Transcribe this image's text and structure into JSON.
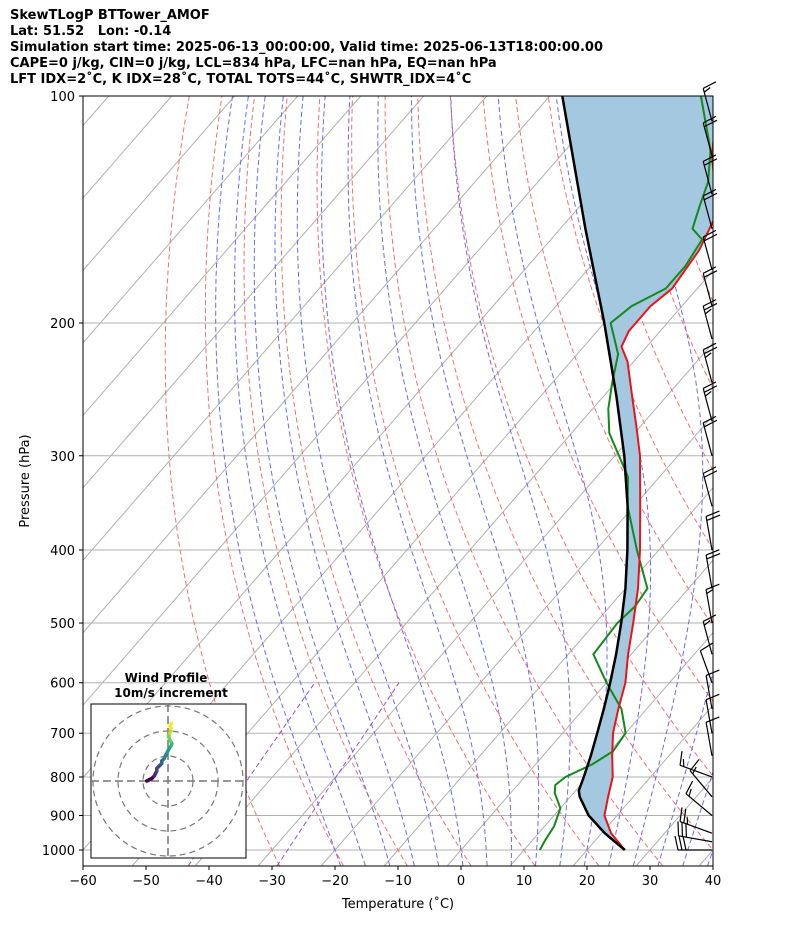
{
  "header": {
    "lines": [
      "SkewTLogP BTTower_AMOF",
      "Lat: 51.52   Lon: -0.14",
      "Simulation start time: 2025-06-13_00:00:00, Valid time: 2025-06-13T18:00:00.00",
      "CAPE=0 j/kg, CIN=0 j/kg, LCL=834 hPa, LFC=nan hPa, EQ=nan hPa",
      "LFT IDX=2˚C, K IDX=28˚C, TOTAL TOTS=44˚C, SHWTR_IDX=4˚C"
    ]
  },
  "colors": {
    "temperature": "#e8141a",
    "dewpoint": "#118a1a",
    "parcel": "#000000",
    "cin_cape_fill": "#a4c8e0",
    "dry_adiabat": "#f07070",
    "moist_adiabat": "#6a6af0",
    "mixing_ratio": "#9b4fc6",
    "isotherm": "#b0b0b0",
    "isobar": "#b0b0b0",
    "wind_profile": "viridis"
  },
  "chart_data": [
    {
      "type": "line",
      "subtype": "skew-t log-p",
      "xlabel": "Temperature (˚C)",
      "ylabel": "Pressure (hPa)",
      "xlim": [
        -60,
        40
      ],
      "ylim": [
        1050,
        100
      ],
      "y_scale": "log",
      "x_ticks": [
        "−60",
        "−50",
        "−40",
        "−30",
        "−20",
        "−10",
        "0",
        "10",
        "20",
        "30",
        "40"
      ],
      "y_ticks": [
        "100",
        "200",
        "300",
        "400",
        "500",
        "600",
        "700",
        "800",
        "900",
        "1000"
      ],
      "grid": true,
      "series": [
        {
          "role": "temperature",
          "points": [
            [
              1000,
              26
            ],
            [
              950,
              21.5
            ],
            [
              900,
              18
            ],
            [
              850,
              16
            ],
            [
              800,
              14
            ],
            [
              750,
              11
            ],
            [
              700,
              8
            ],
            [
              650,
              5.5
            ],
            [
              600,
              3
            ],
            [
              550,
              -0.5
            ],
            [
              500,
              -4
            ],
            [
              450,
              -8
            ],
            [
              400,
              -13
            ],
            [
              350,
              -19
            ],
            [
              300,
              -26
            ],
            [
              275,
              -30.5
            ],
            [
              250,
              -35.5
            ],
            [
              225,
              -41
            ],
            [
              215,
              -44
            ],
            [
              205,
              -45
            ],
            [
              200,
              -45
            ],
            [
              190,
              -45
            ],
            [
              180,
              -44
            ],
            [
              160,
              -45
            ],
            [
              145,
              -47
            ],
            [
              140,
              -48.5
            ],
            [
              130,
              -52
            ],
            [
              120,
              -56
            ],
            [
              110,
              -59.5
            ],
            [
              100,
              -64
            ]
          ]
        },
        {
          "role": "dewpoint",
          "points": [
            [
              1000,
              12.5
            ],
            [
              970,
              12
            ],
            [
              930,
              11.5
            ],
            [
              880,
              10
            ],
            [
              840,
              7
            ],
            [
              820,
              6
            ],
            [
              800,
              6.5
            ],
            [
              770,
              9
            ],
            [
              740,
              10.5
            ],
            [
              700,
              10
            ],
            [
              650,
              6
            ],
            [
              600,
              0
            ],
            [
              550,
              -6
            ],
            [
              500,
              -6.5
            ],
            [
              475,
              -6
            ],
            [
              450,
              -6.5
            ],
            [
              400,
              -13.5
            ],
            [
              350,
              -21
            ],
            [
              320,
              -25
            ],
            [
              280,
              -34
            ],
            [
              260,
              -37.5
            ],
            [
              240,
              -40.5
            ],
            [
              220,
              -43.5
            ],
            [
              200,
              -49
            ],
            [
              190,
              -48
            ],
            [
              180,
              -45
            ],
            [
              168,
              -45
            ],
            [
              155,
              -46
            ],
            [
              150,
              -49
            ],
            [
              140,
              -51
            ],
            [
              130,
              -53
            ],
            [
              118,
              -57
            ],
            [
              100,
              -66
            ]
          ]
        },
        {
          "role": "parcel",
          "points": [
            [
              1000,
              26
            ],
            [
              950,
              20.5
            ],
            [
              900,
              15.5
            ],
            [
              850,
              11.5
            ],
            [
              834,
              10.5
            ],
            [
              800,
              9.4
            ],
            [
              750,
              7.6
            ],
            [
              700,
              5.5
            ],
            [
              650,
              3.2
            ],
            [
              600,
              0.6
            ],
            [
              550,
              -2.4
            ],
            [
              500,
              -5.9
            ],
            [
              450,
              -10
            ],
            [
              400,
              -15
            ],
            [
              350,
              -21
            ],
            [
              300,
              -28.5
            ],
            [
              250,
              -38
            ],
            [
              200,
              -50
            ],
            [
              150,
              -66
            ],
            [
              100,
              -88
            ]
          ]
        }
      ],
      "wind_barbs": [
        {
          "p": 1000,
          "ws": 30,
          "wd": 270
        },
        {
          "p": 975,
          "ws": 30,
          "wd": 280
        },
        {
          "p": 950,
          "ws": 25,
          "wd": 290
        },
        {
          "p": 900,
          "ws": 15,
          "wd": 310
        },
        {
          "p": 850,
          "ws": 15,
          "wd": 320
        },
        {
          "p": 800,
          "ws": 15,
          "wd": 290
        },
        {
          "p": 750,
          "ws": 10,
          "wd": 350
        },
        {
          "p": 700,
          "ws": 10,
          "wd": 350
        },
        {
          "p": 650,
          "ws": 10,
          "wd": 350
        },
        {
          "p": 600,
          "ws": 10,
          "wd": 340
        },
        {
          "p": 550,
          "ws": 15,
          "wd": 345
        },
        {
          "p": 500,
          "ws": 15,
          "wd": 350
        },
        {
          "p": 450,
          "ws": 20,
          "wd": 350
        },
        {
          "p": 400,
          "ws": 20,
          "wd": 350
        },
        {
          "p": 350,
          "ws": 20,
          "wd": 345
        },
        {
          "p": 300,
          "ws": 20,
          "wd": 345
        },
        {
          "p": 270,
          "ws": 25,
          "wd": 345
        },
        {
          "p": 240,
          "ws": 25,
          "wd": 345
        },
        {
          "p": 210,
          "ws": 25,
          "wd": 345
        },
        {
          "p": 190,
          "ws": 20,
          "wd": 345
        },
        {
          "p": 170,
          "ws": 20,
          "wd": 345
        },
        {
          "p": 150,
          "ws": 20,
          "wd": 345
        },
        {
          "p": 135,
          "ws": 20,
          "wd": 345
        },
        {
          "p": 120,
          "ws": 20,
          "wd": 345
        },
        {
          "p": 108,
          "ws": 15,
          "wd": 345
        }
      ]
    },
    {
      "type": "scatter",
      "subtype": "hodograph",
      "title": "Wind Profile",
      "subtitle": "10m/s increment",
      "u": [
        -8.5,
        -7.5,
        -6.5,
        -5.5,
        -5,
        -4.5,
        -4.5,
        -3.5,
        -2.5,
        -2.5,
        -1.5,
        -0.8,
        -0.3,
        0.2,
        0.8,
        1.2,
        1.5,
        1.0,
        0.5,
        0.2,
        0.6,
        1.0,
        1.2,
        0.8,
        1.3
      ],
      "v": [
        0,
        0.5,
        1,
        2,
        3,
        4,
        5,
        6,
        7,
        8,
        9,
        10.5,
        11.5,
        12.5,
        13.5,
        14,
        15,
        16,
        17,
        18,
        19,
        20,
        21,
        22,
        23
      ]
    }
  ]
}
